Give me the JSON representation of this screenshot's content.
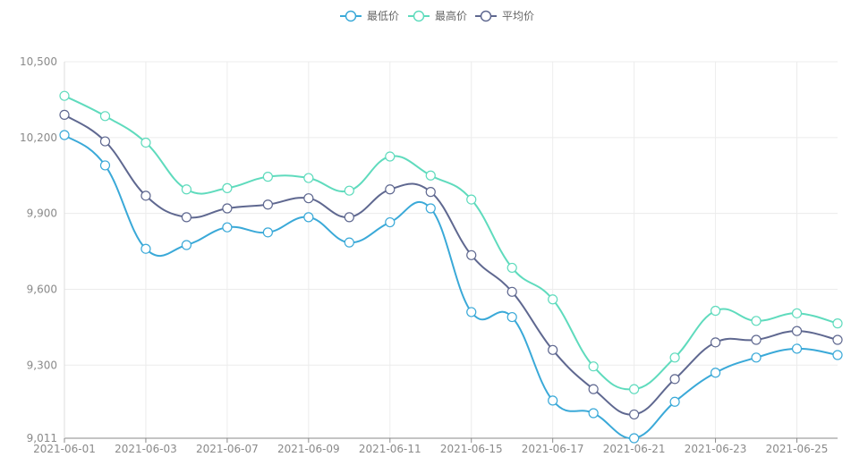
{
  "chart_data": {
    "type": "line",
    "title": "",
    "xlabel": "",
    "ylabel": "",
    "x": [
      "2021-06-01",
      "2021-06-02",
      "2021-06-03",
      "2021-06-04",
      "2021-06-07",
      "2021-06-08",
      "2021-06-09",
      "2021-06-10",
      "2021-06-11",
      "2021-06-14",
      "2021-06-15",
      "2021-06-16",
      "2021-06-17",
      "2021-06-18",
      "2021-06-21",
      "2021-06-22",
      "2021-06-23",
      "2021-06-24",
      "2021-06-25",
      "2021-06-28"
    ],
    "x_tick_labels": [
      "2021-06-01",
      "2021-06-03",
      "2021-06-07",
      "2021-06-09",
      "2021-06-11",
      "2021-06-15",
      "2021-06-17",
      "2021-06-21",
      "2021-06-23",
      "2021-06-25"
    ],
    "x_tick_indices": [
      0,
      2,
      4,
      6,
      8,
      10,
      12,
      14,
      16,
      18
    ],
    "y_ticks": [
      9011,
      9300,
      9600,
      9900,
      10200,
      10500
    ],
    "y_tick_labels": [
      "9,011",
      "9,300",
      "9,600",
      "9,900",
      "10,200",
      "10,500"
    ],
    "ylim": [
      9011,
      10500
    ],
    "grid": true,
    "legend_position": "top-center",
    "series": [
      {
        "name": "最低价",
        "color": "#3aa9d8",
        "values": [
          10210,
          10090,
          9760,
          9775,
          9845,
          9825,
          9885,
          9785,
          9865,
          9920,
          9510,
          9490,
          9160,
          9110,
          9011,
          9155,
          9270,
          9330,
          9365,
          9340
        ]
      },
      {
        "name": "最高价",
        "color": "#5fdbbd",
        "values": [
          10365,
          10285,
          10180,
          9995,
          10000,
          10045,
          10040,
          9990,
          10125,
          10050,
          9955,
          9685,
          9560,
          9295,
          9205,
          9330,
          9515,
          9475,
          9505,
          9465
        ]
      },
      {
        "name": "平均价",
        "color": "#5f6890",
        "values": [
          10290,
          10185,
          9970,
          9885,
          9920,
          9935,
          9960,
          9885,
          9995,
          9985,
          9735,
          9590,
          9360,
          9205,
          9105,
          9245,
          9390,
          9400,
          9435,
          9400
        ]
      }
    ]
  }
}
